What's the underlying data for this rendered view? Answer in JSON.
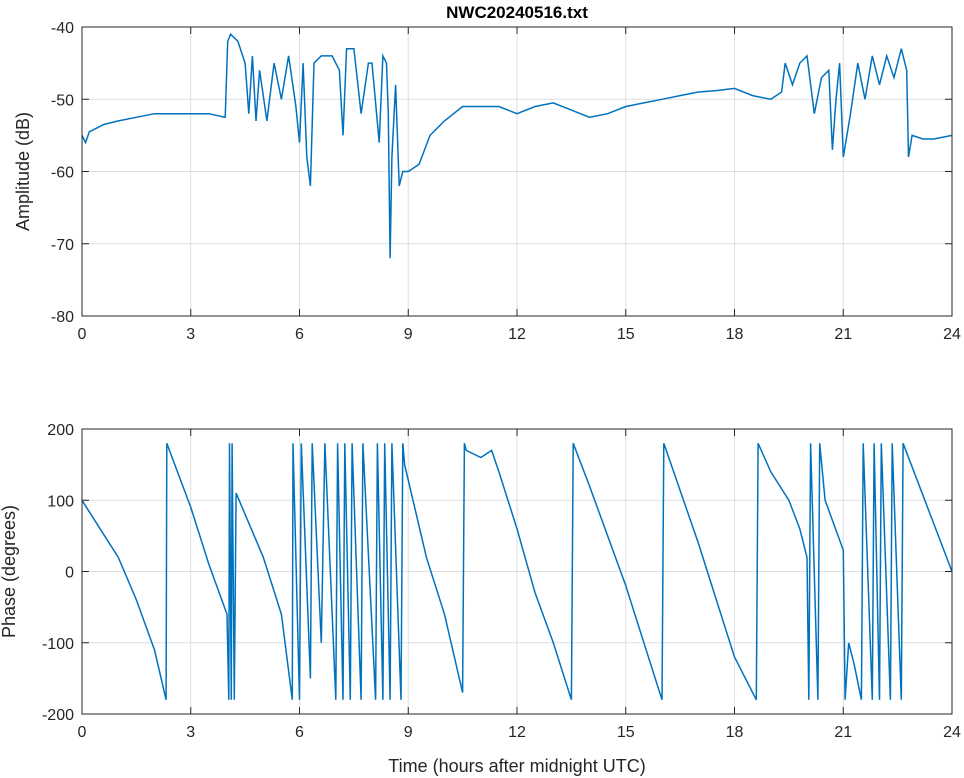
{
  "title": "NWC20240516.txt",
  "colors": {
    "line": "#0072BD",
    "grid": "#DFDFDF",
    "axis": "#262626"
  },
  "chart_data": [
    {
      "type": "line",
      "title": "NWC20240516.txt",
      "xlabel": "",
      "ylabel": "Amplitude (dB)",
      "xlim": [
        0,
        24
      ],
      "ylim": [
        -80,
        -40
      ],
      "xticks": [
        0,
        3,
        6,
        9,
        12,
        15,
        18,
        21,
        24
      ],
      "xtick_labels": [
        "0",
        "3",
        "6",
        "9",
        "12",
        "15",
        "18",
        "21",
        "24"
      ],
      "yticks": [
        -40,
        -50,
        -60,
        -70,
        -80
      ],
      "ytick_labels": [
        "-40",
        "-50",
        "-60",
        "-70",
        "-80"
      ],
      "grid": true,
      "series": [
        {
          "name": "Amplitude",
          "x": [
            0,
            0.1,
            0.2,
            0.4,
            0.6,
            1,
            1.5,
            2,
            2.5,
            3,
            3.5,
            3.95,
            4.02,
            4.1,
            4.3,
            4.5,
            4.6,
            4.7,
            4.8,
            4.9,
            5.1,
            5.3,
            5.5,
            5.7,
            5.9,
            6.0,
            6.1,
            6.2,
            6.3,
            6.4,
            6.6,
            6.9,
            7.1,
            7.2,
            7.3,
            7.5,
            7.7,
            7.9,
            8.0,
            8.2,
            8.3,
            8.4,
            8.45,
            8.5,
            8.55,
            8.65,
            8.75,
            8.85,
            9,
            9.3,
            9.6,
            10,
            10.5,
            11,
            11.5,
            12,
            12.5,
            13,
            13.5,
            14,
            14.5,
            15,
            15.5,
            16,
            16.5,
            17,
            17.5,
            18,
            18.5,
            19,
            19.3,
            19.4,
            19.6,
            19.8,
            20,
            20.2,
            20.4,
            20.6,
            20.7,
            20.8,
            20.9,
            21,
            21.1,
            21.2,
            21.4,
            21.6,
            21.8,
            22,
            22.2,
            22.4,
            22.6,
            22.75,
            22.8,
            22.9,
            23.2,
            23.5,
            24
          ],
          "y": [
            -55,
            -56,
            -54.5,
            -54,
            -53.5,
            -53,
            -52.5,
            -52,
            -52,
            -52,
            -52,
            -52.5,
            -42,
            -41,
            -42,
            -45,
            -52,
            -44,
            -53,
            -46,
            -53,
            -45,
            -50,
            -44,
            -51,
            -56,
            -45,
            -58,
            -62,
            -45,
            -44,
            -44,
            -46,
            -55,
            -43,
            -43,
            -52,
            -45,
            -45,
            -56,
            -44,
            -45,
            -52,
            -72,
            -58,
            -48,
            -62,
            -60,
            -60,
            -59,
            -55,
            -53,
            -51,
            -51,
            -51,
            -52,
            -51,
            -50.5,
            -51.5,
            -52.5,
            -52,
            -51,
            -50.5,
            -50,
            -49.5,
            -49,
            -48.8,
            -48.5,
            -49.5,
            -50,
            -49,
            -45,
            -48,
            -45,
            -44,
            -52,
            -47,
            -46,
            -57,
            -50,
            -45,
            -58,
            -55,
            -52,
            -45,
            -50,
            -44,
            -48,
            -44,
            -47,
            -43,
            -46,
            -58,
            -55,
            -55.5,
            -55.5,
            -55
          ]
        }
      ]
    },
    {
      "type": "line",
      "title": "",
      "xlabel": "Time (hours after midnight UTC)",
      "ylabel": "Phase (degrees)",
      "xlim": [
        0,
        24
      ],
      "ylim": [
        -200,
        200
      ],
      "xticks": [
        0,
        3,
        6,
        9,
        12,
        15,
        18,
        21,
        24
      ],
      "xtick_labels": [
        "0",
        "3",
        "6",
        "9",
        "12",
        "15",
        "18",
        "21",
        "24"
      ],
      "yticks": [
        200,
        100,
        0,
        -100,
        -200
      ],
      "ytick_labels": [
        "200",
        "100",
        "0",
        "-100",
        "-200"
      ],
      "grid": true,
      "series": [
        {
          "name": "Phase",
          "x": [
            0,
            0.5,
            1,
            1.5,
            2,
            2.32,
            2.34,
            3,
            3.5,
            4,
            4.05,
            4.07,
            4.12,
            4.14,
            4.2,
            4.25,
            5,
            5.5,
            5.8,
            5.82,
            6,
            6.05,
            6.3,
            6.35,
            6.6,
            6.7,
            7,
            7.05,
            7.2,
            7.25,
            7.4,
            7.45,
            7.7,
            7.75,
            8.1,
            8.15,
            8.3,
            8.35,
            8.5,
            8.55,
            8.8,
            8.85,
            8.9,
            9.5,
            10,
            10.5,
            10.55,
            10.6,
            11,
            11.3,
            11.5,
            12,
            12.5,
            13,
            13.5,
            13.55,
            14,
            15,
            16,
            16.05,
            17,
            18,
            18.6,
            18.65,
            19,
            19.5,
            19.8,
            20,
            20.05,
            20.1,
            20.3,
            20.35,
            20.5,
            21,
            21.05,
            21.15,
            21.3,
            21.5,
            21.55,
            21.8,
            21.85,
            22,
            22.05,
            22.3,
            22.35,
            22.6,
            22.65,
            24
          ],
          "y": [
            100,
            60,
            20,
            -40,
            -110,
            -180,
            180,
            90,
            10,
            -60,
            -180,
            180,
            -180,
            180,
            -180,
            110,
            20,
            -60,
            -180,
            180,
            -180,
            180,
            -150,
            180,
            -100,
            180,
            -180,
            180,
            -180,
            180,
            -180,
            180,
            -180,
            180,
            -180,
            180,
            -180,
            180,
            -180,
            180,
            -180,
            180,
            150,
            20,
            -60,
            -170,
            180,
            170,
            160,
            170,
            140,
            60,
            -30,
            -100,
            -180,
            180,
            120,
            -20,
            -180,
            180,
            40,
            -120,
            -180,
            180,
            140,
            100,
            60,
            20,
            -180,
            180,
            -180,
            180,
            100,
            30,
            -180,
            -100,
            -130,
            -180,
            180,
            -180,
            180,
            -180,
            180,
            -180,
            180,
            -180,
            180,
            0
          ]
        }
      ]
    }
  ]
}
